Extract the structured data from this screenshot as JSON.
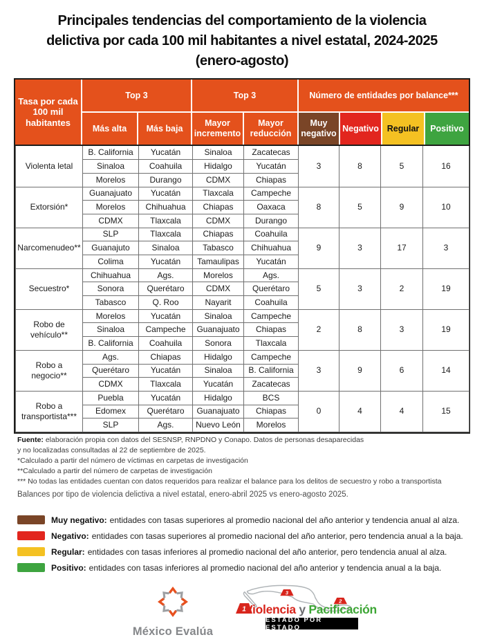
{
  "colors": {
    "header_orange": "#E4511C",
    "muy_negativo": "#7A4527",
    "negativo": "#E2261E",
    "regular": "#F4C122",
    "positivo": "#3EA440",
    "vyp_red": "#D8251C",
    "vyp_green": "#3DA635",
    "logo_gray": "#85878A",
    "evalua_orange": "#E8501E",
    "map_gray": "#AFB4B7"
  },
  "chart_data": {
    "type": "table",
    "title_lines": [
      "Principales tendencias del comportamiento de la violencia",
      "delictiva por cada 100 mil habitantes a nivel estatal, 2024-2025",
      "(enero-agosto)"
    ],
    "corner_header": "Tasa por cada 100 mil habitantes",
    "group_headers": [
      "Top 3",
      "Top 3",
      "Número de entidades por balance***"
    ],
    "sub_headers": [
      "Más alta",
      "Más baja",
      "Mayor incremento",
      "Mayor reducción",
      "Muy negativo",
      "Negativo",
      "Regular",
      "Positivo"
    ],
    "rows": [
      {
        "crime": "Violenta letal",
        "mas_alta": [
          "B. California",
          "Sinaloa",
          "Morelos"
        ],
        "mas_baja": [
          "Yucatán",
          "Coahuila",
          "Durango"
        ],
        "mayor_incremento": [
          "Sinaloa",
          "Hidalgo",
          "CDMX"
        ],
        "mayor_reduccion": [
          "Zacatecas",
          "Yucatán",
          "Chiapas"
        ],
        "balance": [
          3,
          8,
          5,
          16
        ]
      },
      {
        "crime": "Extorsión*",
        "mas_alta": [
          "Guanajuato",
          "Morelos",
          "CDMX"
        ],
        "mas_baja": [
          "Yucatán",
          "Chihuahua",
          "Tlaxcala"
        ],
        "mayor_incremento": [
          "Tlaxcala",
          "Chiapas",
          "CDMX"
        ],
        "mayor_reduccion": [
          "Campeche",
          "Oaxaca",
          "Durango"
        ],
        "balance": [
          8,
          5,
          9,
          10
        ]
      },
      {
        "crime": "Narcomenudeo**",
        "mas_alta": [
          "SLP",
          "Guanajuto",
          "Colima"
        ],
        "mas_baja": [
          "Tlaxcala",
          "Sinaloa",
          "Yucatán"
        ],
        "mayor_incremento": [
          "Chiapas",
          "Tabasco",
          "Tamaulipas"
        ],
        "mayor_reduccion": [
          "Coahuila",
          "Chihuahua",
          "Yucatán"
        ],
        "balance": [
          9,
          3,
          17,
          3
        ]
      },
      {
        "crime": "Secuestro*",
        "mas_alta": [
          "Chihuahua",
          "Sonora",
          "Tabasco"
        ],
        "mas_baja": [
          "Ags.",
          "Querétaro",
          "Q. Roo"
        ],
        "mayor_incremento": [
          "Morelos",
          "CDMX",
          "Nayarit"
        ],
        "mayor_reduccion": [
          "Ags.",
          "Querétaro",
          "Coahuila"
        ],
        "balance": [
          5,
          3,
          2,
          19
        ]
      },
      {
        "crime": "Robo de vehículo**",
        "mas_alta": [
          "Morelos",
          "Sinaloa",
          "B. California"
        ],
        "mas_baja": [
          "Yucatán",
          "Campeche",
          "Coahuila"
        ],
        "mayor_incremento": [
          "Sinaloa",
          "Guanajuato",
          "Sonora"
        ],
        "mayor_reduccion": [
          "Campeche",
          "Chiapas",
          "Tlaxcala"
        ],
        "balance": [
          2,
          8,
          3,
          19
        ]
      },
      {
        "crime": "Robo a negocio**",
        "mas_alta": [
          "Ags.",
          "Querétaro",
          "CDMX"
        ],
        "mas_baja": [
          "Chiapas",
          "Yucatán",
          "Tlaxcala"
        ],
        "mayor_incremento": [
          "Hidalgo",
          "Sinaloa",
          "Yucatán"
        ],
        "mayor_reduccion": [
          "Campeche",
          "B. California",
          "Zacatecas"
        ],
        "balance": [
          3,
          9,
          6,
          14
        ]
      },
      {
        "crime": "Robo a transportista***",
        "mas_alta": [
          "Puebla",
          "Edomex",
          "SLP"
        ],
        "mas_baja": [
          "Yucatán",
          "Querétaro",
          "Ags."
        ],
        "mayor_incremento": [
          "Hidalgo",
          "Guanajuato",
          "Nuevo León"
        ],
        "mayor_reduccion": [
          "BCS",
          "Chiapas",
          "Morelos"
        ],
        "balance": [
          0,
          4,
          4,
          15
        ]
      }
    ]
  },
  "notes": {
    "fuente_label": "Fuente:",
    "fuente_text": " elaboración propia con datos del SESNSP, RNPDNO y Conapo. Datos de personas desaparecidas y no localizadas consultadas al 22 de septiembre de 2025.",
    "asterisks": [
      "*Calculado a partir del número de víctimas en carpetas de investigación",
      "**Calculado a partir del número de carpetas de investigación",
      "*** No todas las entidades cuentan con datos requeridos para realizar el balance para los delitos de secuestro y robo a transportista"
    ],
    "balance_note": "Balances por tipo de violencia delictiva a nivel estatal, enero-abril 2025 vs enero-agosto 2025."
  },
  "legend": [
    {
      "label": "Muy negativo:",
      "text": "entidades con tasas superiores al promedio nacional del año anterior y tendencia anual al alza."
    },
    {
      "label": "Negativo:",
      "text": "entidades con tasas superiores al promedio nacional del año anterior, pero tendencia anual a la baja."
    },
    {
      "label": "Regular:",
      "text": "entidades con tasas inferiores al promedio nacional del año anterior, pero tendencia anual al alza."
    },
    {
      "label": "Positivo:",
      "text": "entidades con tasas inferiores al promedio nacional del año anterior y tendencia anual a la baja."
    }
  ],
  "logos": {
    "mexico_evalua_text": "México Evalúa",
    "vyp_violencia": "Violencia",
    "vyp_y": "y",
    "vyp_pacificacion": "Pacificación",
    "vyp_bar": "ESTADO POR ESTADO",
    "vyp_marker_1": "1",
    "vyp_marker_2": "2",
    "vyp_marker_3": "3"
  }
}
